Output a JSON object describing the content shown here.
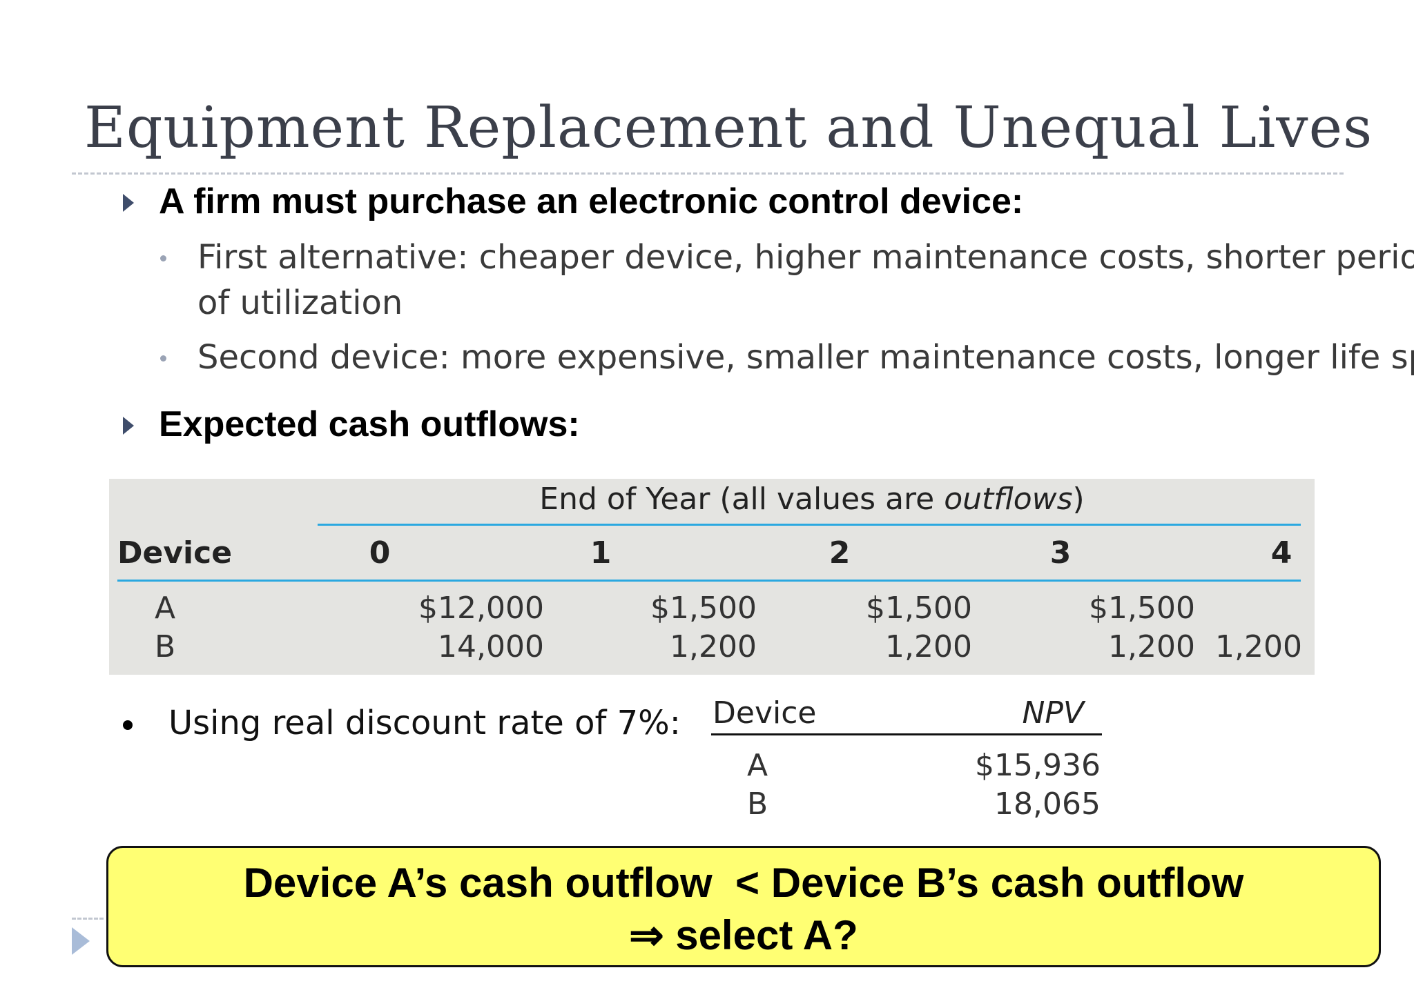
{
  "slide": {
    "title": "Equipment Replacement and Unequal Lives",
    "bullets": [
      "A firm must purchase an electronic control device:",
      "Expected cash outflows:"
    ],
    "sub_bullets": [
      {
        "line1": "First alternative: cheaper device, higher maintenance costs, shorter period",
        "line2": "of utilization"
      },
      {
        "line1": "Second device: more expensive, smaller maintenance costs, longer life span"
      }
    ]
  },
  "table": {
    "header_prefix": "End of Year (all values are ",
    "header_italic": "outflows",
    "header_suffix": ")",
    "device_label": "Device",
    "years": [
      "0",
      "1",
      "2",
      "3",
      "4"
    ],
    "rows": [
      {
        "device": "A",
        "values": [
          "$12,000",
          "$1,500",
          "$1,500",
          "$1,500",
          ""
        ]
      },
      {
        "device": "B",
        "values": [
          "14,000",
          "1,200",
          "1,200",
          "1,200",
          "1,200"
        ]
      }
    ]
  },
  "rate": {
    "text": "Using real discount rate of 7%:"
  },
  "npv": {
    "device_label": "Device",
    "npv_label": "NPV",
    "rows": [
      {
        "device": "A",
        "value": "$15,936"
      },
      {
        "device": "B",
        "value": "18,065"
      }
    ]
  },
  "callout": {
    "line1": "Device A’s cash outflow  < Device B’s cash outflow",
    "line2": "⇒ select A?"
  },
  "colors": {
    "accent_rule": "#2aa8e0",
    "callout_bg": "#ffff73",
    "table_bg": "#e4e4e1"
  }
}
